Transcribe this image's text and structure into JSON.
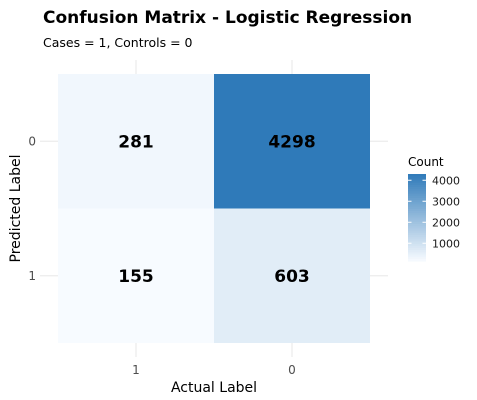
{
  "chart_data": {
    "type": "heatmap",
    "title": "Confusion Matrix - Logistic Regression",
    "subtitle": "Cases = 1, Controls = 0",
    "xlabel": "Actual Label",
    "ylabel": "Predicted Label",
    "x_categories": [
      "1",
      "0"
    ],
    "y_categories": [
      "0",
      "1"
    ],
    "cells": [
      {
        "x": "1",
        "y": "0",
        "value": 281
      },
      {
        "x": "0",
        "y": "0",
        "value": 4298
      },
      {
        "x": "1",
        "y": "1",
        "value": 155
      },
      {
        "x": "0",
        "y": "1",
        "value": 603
      }
    ],
    "legend": {
      "title": "Count",
      "ticks": [
        1000,
        2000,
        3000,
        4000
      ],
      "range": [
        155,
        4298
      ],
      "color_low": "#f7fbff",
      "color_high": "#2f7ab9"
    },
    "grid": true
  }
}
